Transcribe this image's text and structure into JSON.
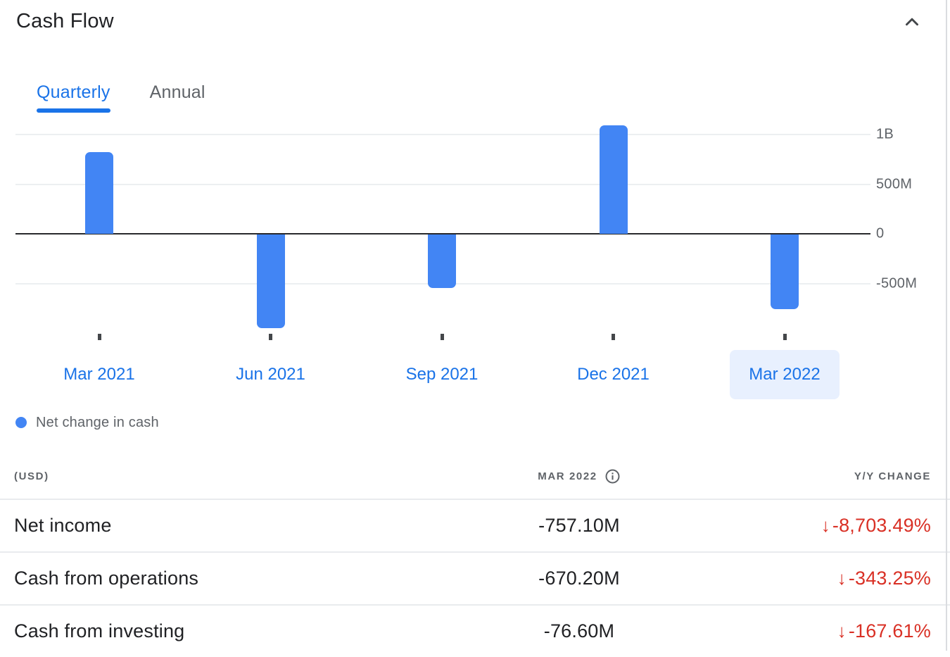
{
  "header": {
    "title": "Cash Flow"
  },
  "tabs": [
    {
      "label": "Quarterly",
      "active": true
    },
    {
      "label": "Annual",
      "active": false
    }
  ],
  "chart_data": {
    "type": "bar",
    "series_name": "Net change in cash",
    "categories": [
      "Mar 2021",
      "Jun 2021",
      "Sep 2021",
      "Dec 2021",
      "Mar 2022"
    ],
    "values_millions": [
      820,
      -940,
      -540,
      1090,
      -750
    ],
    "selected_category": "Mar 2022",
    "y_ticks": [
      {
        "label": "1B",
        "value": 1000
      },
      {
        "label": "500M",
        "value": 500
      },
      {
        "label": "0",
        "value": 0
      },
      {
        "label": "-500M",
        "value": -500
      }
    ],
    "ylim": [
      -1200,
      1200
    ],
    "y_axis_side": "right",
    "grid": true,
    "legend_position": "bottom-left",
    "bar_color": "#4285f4"
  },
  "legend": {
    "label": "Net change in cash",
    "dot_color": "#4285f4"
  },
  "table": {
    "unit_label": "(USD)",
    "period_label": "MAR 2022",
    "change_label": "Y/Y CHANGE",
    "rows": [
      {
        "label": "Net income",
        "value": "-757.10M",
        "change": "-8,703.49%",
        "direction": "down"
      },
      {
        "label": "Cash from operations",
        "value": "-670.20M",
        "change": "-343.25%",
        "direction": "down"
      },
      {
        "label": "Cash from investing",
        "value": "-76.60M",
        "change": "-167.61%",
        "direction": "down"
      }
    ]
  },
  "icons": {
    "down_arrow": "↓"
  },
  "colors": {
    "accent_blue": "#1a73e8",
    "bar_blue": "#4285f4",
    "negative_red": "#d93025",
    "selected_pill_bg": "#e8f0fe",
    "muted_text": "#5f6368",
    "dark_text": "#202124"
  }
}
